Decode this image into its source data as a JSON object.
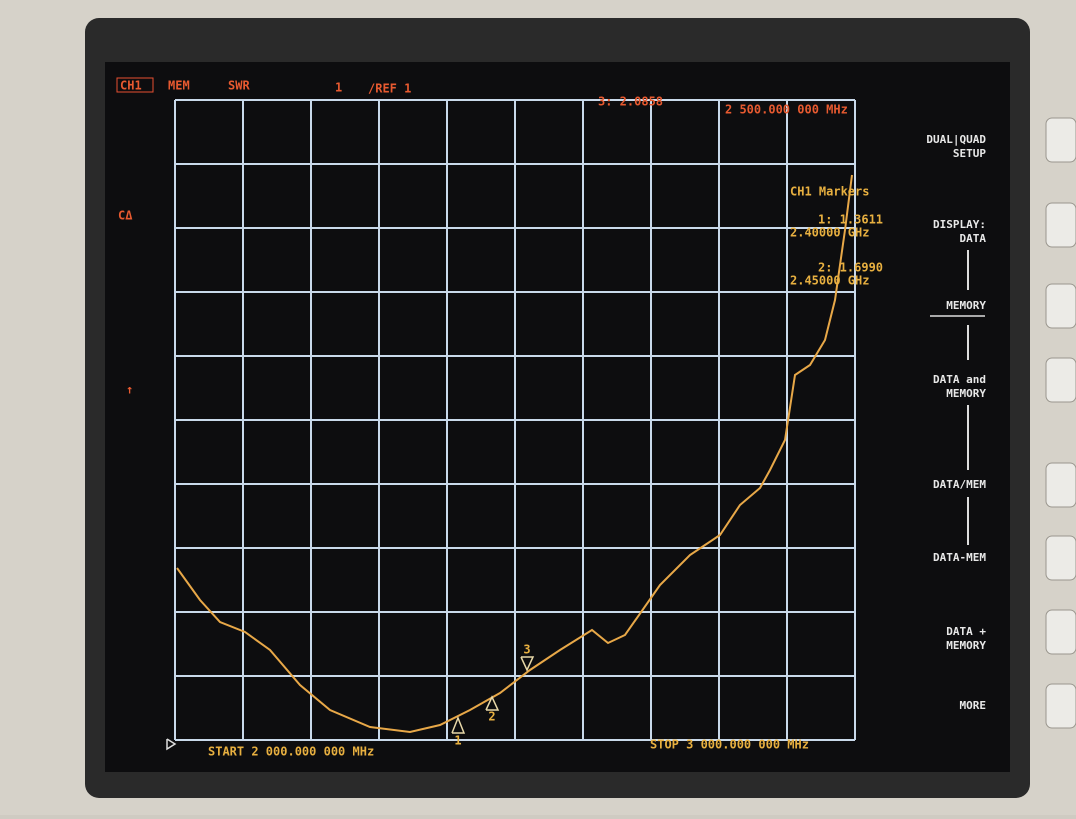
{
  "header": {
    "channel": "CH1",
    "mode": "MEM",
    "format": "SWR",
    "scale": "1",
    "reference": "/REF 1",
    "marker_readout": "3: 2.0858",
    "marker_freq": "2 500.000 000 MHz"
  },
  "left": {
    "status": "CΔ",
    "ref_arrow": "↑"
  },
  "markers": {
    "title": "CH1 Markers",
    "m1_value": "1: 1.3611",
    "m1_freq": "2.40000 GHz",
    "m2_value": "2: 1.6990",
    "m2_freq": "2.45000 GHz"
  },
  "trace_markers": [
    "1",
    "2",
    "3"
  ],
  "softkeys": [
    [
      "DUAL|QUAD",
      "SETUP"
    ],
    [
      "DISPLAY:",
      "DATA"
    ],
    [
      "MEMORY"
    ],
    [
      "DATA and",
      "MEMORY"
    ],
    [
      "DATA/MEM"
    ],
    [
      "DATA-MEM"
    ],
    [
      "DATA +",
      "MEMORY"
    ],
    [
      "MORE"
    ]
  ],
  "footer": {
    "start": "START 2 000.000 000 MHz",
    "stop": "STOP 3 000.000 000 MHz"
  }
}
